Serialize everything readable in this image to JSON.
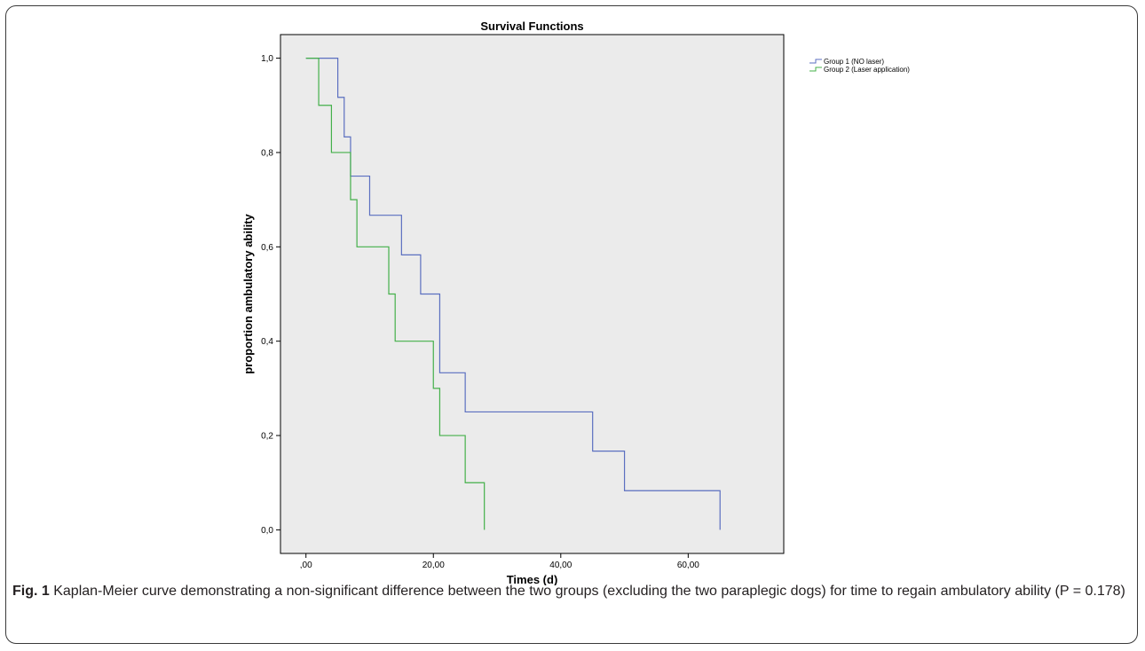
{
  "figure": {
    "label": "Fig. 1",
    "caption": "Kaplan-Meier curve demonstrating a non-significant difference between the two groups (excluding the two paraplegic dogs) for time to regain ambulatory ability (P = 0.178)"
  },
  "colors": {
    "plot_background": "#ebebeb",
    "group1": "#5b6fc0",
    "group2": "#44b04a",
    "axis": "#000000"
  },
  "chart_data": {
    "type": "line",
    "subtype": "kaplan-meier-step",
    "title": "Survival Functions",
    "xlabel": "Times (d)",
    "ylabel": "proportion ambulatory ability",
    "xlim": [
      -4,
      75
    ],
    "ylim": [
      -0.05,
      1.05
    ],
    "xticks": [
      0,
      20,
      40,
      60
    ],
    "xtick_labels": [
      ",00",
      "20,00",
      "40,00",
      "60,00"
    ],
    "yticks": [
      0,
      0.2,
      0.4,
      0.6,
      0.8,
      1.0
    ],
    "ytick_labels": [
      "0,0",
      "0,2",
      "0,4",
      "0,6",
      "0,8",
      "1,0"
    ],
    "grid": false,
    "legend_position": "top-right-outside",
    "series": [
      {
        "name": "Group 1 (NO laser)",
        "color": "#5b6fc0",
        "points": [
          [
            0,
            1.0
          ],
          [
            5,
            0.917
          ],
          [
            6,
            0.833
          ],
          [
            7,
            0.75
          ],
          [
            10,
            0.667
          ],
          [
            15,
            0.583
          ],
          [
            18,
            0.5
          ],
          [
            21,
            0.333
          ],
          [
            25,
            0.25
          ],
          [
            45,
            0.167
          ],
          [
            50,
            0.083
          ],
          [
            65,
            0.0
          ]
        ]
      },
      {
        "name": "Group 2 (Laser application)",
        "color": "#44b04a",
        "points": [
          [
            0,
            1.0
          ],
          [
            2,
            0.9
          ],
          [
            4,
            0.8
          ],
          [
            7,
            0.7
          ],
          [
            8,
            0.6
          ],
          [
            13,
            0.5
          ],
          [
            14,
            0.4
          ],
          [
            20,
            0.3
          ],
          [
            21,
            0.2
          ],
          [
            25,
            0.1
          ],
          [
            28,
            0.0
          ]
        ]
      }
    ]
  }
}
